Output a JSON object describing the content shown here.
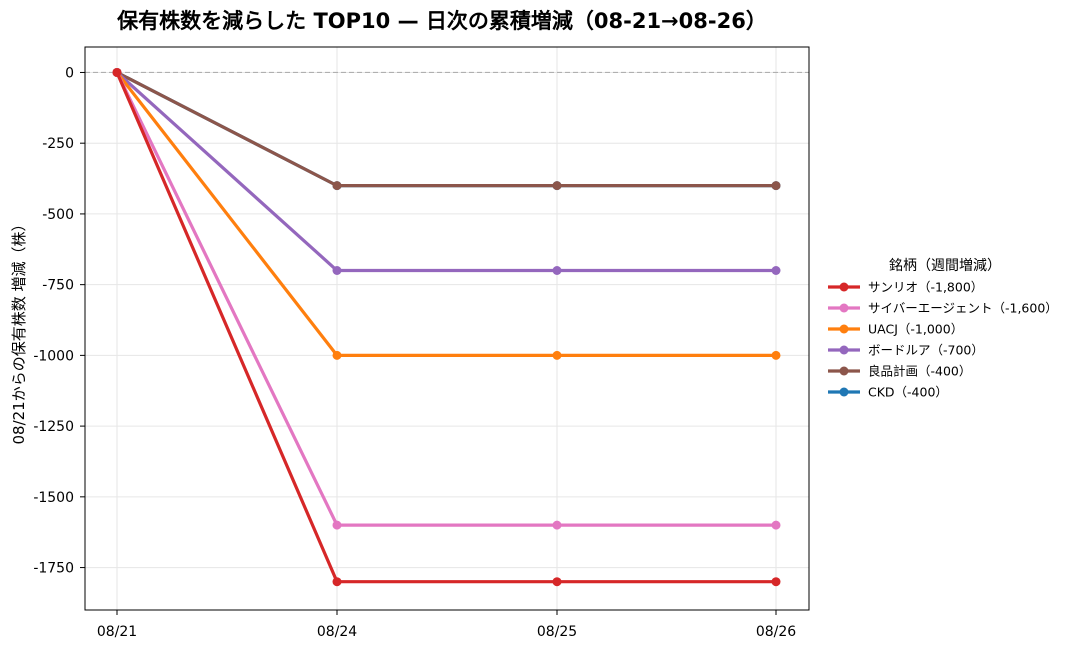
{
  "chart_data": {
    "type": "line",
    "title": "保有株数を減らした TOP10 — 日次の累積増減（08-21→08-26）",
    "xlabel": "",
    "ylabel": "08/21からの保有株数 増減（株）",
    "x": [
      "08/21",
      "08/24",
      "08/25",
      "08/26"
    ],
    "ylim": [
      -1900,
      90
    ],
    "yticks": [
      0,
      -250,
      -500,
      -750,
      -1000,
      -1250,
      -1500,
      -1750
    ],
    "grid": true,
    "reference_line": {
      "y": 0,
      "style": "dashed",
      "color": "#b0b0b0"
    },
    "legend": {
      "title": "銘柄（週間増減）",
      "placement": "right"
    },
    "series": [
      {
        "name": "サンリオ（-1,800）",
        "color": "#d62728",
        "values": [
          0,
          -1800,
          -1800,
          -1800
        ]
      },
      {
        "name": "サイバーエージェント（-1,600）",
        "color": "#e377c2",
        "values": [
          0,
          -1600,
          -1600,
          -1600
        ]
      },
      {
        "name": "UACJ（-1,000）",
        "color": "#ff7f0e",
        "values": [
          0,
          -1000,
          -1000,
          -1000
        ]
      },
      {
        "name": "ボードルア（-700）",
        "color": "#9467bd",
        "values": [
          0,
          -700,
          -700,
          -700
        ]
      },
      {
        "name": "良品計画（-400）",
        "color": "#8c564b",
        "values": [
          0,
          -400,
          -400,
          -400
        ]
      },
      {
        "name": "CKD（-400）",
        "color": "#1f77b4",
        "values": [
          0,
          -400,
          -400,
          -400
        ]
      }
    ]
  }
}
